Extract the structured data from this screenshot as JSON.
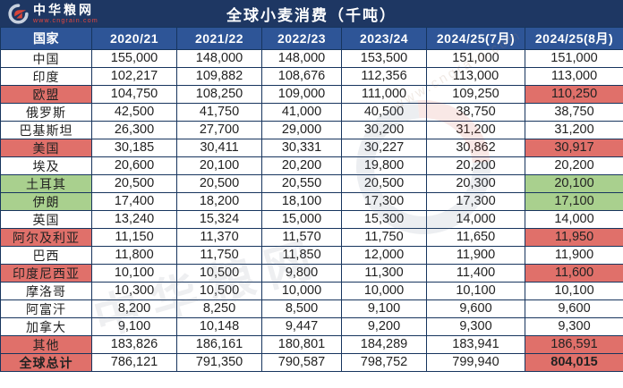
{
  "header": {
    "logo": {
      "brand": "中华粮网",
      "url_text": "www.cngrain.com"
    },
    "title": "全球小麦消费（千吨）"
  },
  "watermark": {
    "text": "中华粮网",
    "url_text": "www.cngrain.com"
  },
  "colors": {
    "title_bar_bg": "#1e3763",
    "header_row_bg": "#2e5597",
    "red_highlight": "#e0706a",
    "green_highlight": "#a9d08e",
    "border": "#17355e"
  },
  "table": {
    "columns": [
      "国家",
      "2020/21",
      "2021/22",
      "2022/23",
      "2023/24",
      "2024/25(7月)",
      "2024/25(8月)"
    ],
    "rows": [
      {
        "country": "中国",
        "values": [
          "155,000",
          "148,000",
          "148,000",
          "153,500",
          "151,000",
          "151,000"
        ],
        "highlight": null,
        "bold": false
      },
      {
        "country": "印度",
        "values": [
          "102,217",
          "109,882",
          "108,676",
          "112,356",
          "113,000",
          "113,000"
        ],
        "highlight": null,
        "bold": false
      },
      {
        "country": "欧盟",
        "values": [
          "104,750",
          "108,250",
          "109,000",
          "111,000",
          "109,250",
          "110,250"
        ],
        "highlight": "red",
        "bold": false
      },
      {
        "country": "俄罗斯",
        "values": [
          "42,500",
          "41,750",
          "41,000",
          "40,500",
          "38,750",
          "38,750"
        ],
        "highlight": null,
        "bold": false
      },
      {
        "country": "巴基斯坦",
        "values": [
          "26,300",
          "27,700",
          "29,000",
          "30,200",
          "31,200",
          "31,200"
        ],
        "highlight": null,
        "bold": false
      },
      {
        "country": "美国",
        "values": [
          "30,185",
          "30,411",
          "30,331",
          "30,227",
          "30,862",
          "30,917"
        ],
        "highlight": "red",
        "bold": false
      },
      {
        "country": "埃及",
        "values": [
          "20,600",
          "20,100",
          "20,200",
          "19,800",
          "20,200",
          "20,200"
        ],
        "highlight": null,
        "bold": false
      },
      {
        "country": "土耳其",
        "values": [
          "20,500",
          "20,500",
          "20,550",
          "20,500",
          "20,300",
          "20,100"
        ],
        "highlight": "green",
        "bold": false
      },
      {
        "country": "伊朗",
        "values": [
          "17,400",
          "18,200",
          "18,100",
          "17,300",
          "17,300",
          "17,100"
        ],
        "highlight": "green",
        "bold": false
      },
      {
        "country": "英国",
        "values": [
          "13,240",
          "15,324",
          "15,000",
          "15,300",
          "14,000",
          "14,000"
        ],
        "highlight": null,
        "bold": false
      },
      {
        "country": "阿尔及利亚",
        "values": [
          "11,150",
          "11,370",
          "11,570",
          "11,750",
          "11,650",
          "11,950"
        ],
        "highlight": "red",
        "bold": false
      },
      {
        "country": "巴西",
        "values": [
          "11,800",
          "11,750",
          "11,850",
          "12,000",
          "11,900",
          "11,900"
        ],
        "highlight": null,
        "bold": false
      },
      {
        "country": "印度尼西亚",
        "values": [
          "10,100",
          "10,500",
          "9,800",
          "11,300",
          "11,400",
          "11,600"
        ],
        "highlight": "red",
        "bold": false
      },
      {
        "country": "摩洛哥",
        "values": [
          "10,300",
          "10,500",
          "10,000",
          "10,000",
          "10,100",
          "10,100"
        ],
        "highlight": null,
        "bold": false
      },
      {
        "country": "阿富汗",
        "values": [
          "8,200",
          "8,250",
          "8,500",
          "9,100",
          "9,600",
          "9,600"
        ],
        "highlight": null,
        "bold": false
      },
      {
        "country": "加拿大",
        "values": [
          "9,100",
          "10,148",
          "9,447",
          "9,200",
          "9,300",
          "9,300"
        ],
        "highlight": null,
        "bold": false
      },
      {
        "country": "其他",
        "values": [
          "183,826",
          "186,161",
          "180,801",
          "184,289",
          "183,941",
          "186,591"
        ],
        "highlight": "red",
        "bold": false
      },
      {
        "country": "全球总计",
        "values": [
          "786,121",
          "791,350",
          "790,587",
          "798,752",
          "799,940",
          "804,015"
        ],
        "highlight": "red",
        "bold": true
      }
    ]
  },
  "chart_data": {
    "type": "table",
    "title": "全球小麦消费（千吨）",
    "unit": "千吨",
    "columns": [
      "2020/21",
      "2021/22",
      "2022/23",
      "2023/24",
      "2024/25(7月)",
      "2024/25(8月)"
    ],
    "series": [
      {
        "name": "中国",
        "values": [
          155000,
          148000,
          148000,
          153500,
          151000,
          151000
        ]
      },
      {
        "name": "印度",
        "values": [
          102217,
          109882,
          108676,
          112356,
          113000,
          113000
        ]
      },
      {
        "name": "欧盟",
        "values": [
          104750,
          108250,
          109000,
          111000,
          109250,
          110250
        ]
      },
      {
        "name": "俄罗斯",
        "values": [
          42500,
          41750,
          41000,
          40500,
          38750,
          38750
        ]
      },
      {
        "name": "巴基斯坦",
        "values": [
          26300,
          27700,
          29000,
          30200,
          31200,
          31200
        ]
      },
      {
        "name": "美国",
        "values": [
          30185,
          30411,
          30331,
          30227,
          30862,
          30917
        ]
      },
      {
        "name": "埃及",
        "values": [
          20600,
          20100,
          20200,
          19800,
          20200,
          20200
        ]
      },
      {
        "name": "土耳其",
        "values": [
          20500,
          20500,
          20550,
          20500,
          20300,
          20100
        ]
      },
      {
        "name": "伊朗",
        "values": [
          17400,
          18200,
          18100,
          17300,
          17300,
          17100
        ]
      },
      {
        "name": "英国",
        "values": [
          13240,
          15324,
          15000,
          15300,
          14000,
          14000
        ]
      },
      {
        "name": "阿尔及利亚",
        "values": [
          11150,
          11370,
          11570,
          11750,
          11650,
          11950
        ]
      },
      {
        "name": "巴西",
        "values": [
          11800,
          11750,
          11850,
          12000,
          11900,
          11900
        ]
      },
      {
        "name": "印度尼西亚",
        "values": [
          10100,
          10500,
          9800,
          11300,
          11400,
          11600
        ]
      },
      {
        "name": "摩洛哥",
        "values": [
          10300,
          10500,
          10000,
          10000,
          10100,
          10100
        ]
      },
      {
        "name": "阿富汗",
        "values": [
          8200,
          8250,
          8500,
          9100,
          9600,
          9600
        ]
      },
      {
        "name": "加拿大",
        "values": [
          9100,
          10148,
          9447,
          9200,
          9300,
          9300
        ]
      },
      {
        "name": "其他",
        "values": [
          183826,
          186161,
          180801,
          184289,
          183941,
          186591
        ]
      },
      {
        "name": "全球总计",
        "values": [
          786121,
          791350,
          790587,
          798752,
          799940,
          804015
        ]
      }
    ]
  }
}
